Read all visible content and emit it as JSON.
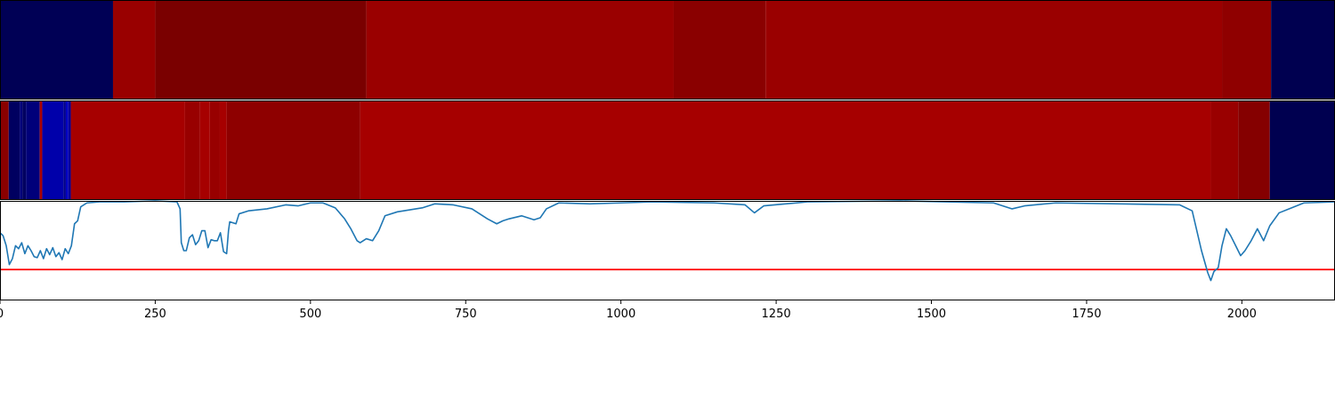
{
  "chart_data": [
    {
      "type": "heatmap",
      "x_range": [
        0,
        2150
      ],
      "segments": [
        {
          "x0": 0,
          "x1": 182,
          "color": "#000055"
        },
        {
          "x0": 182,
          "x1": 250,
          "color": "#990000"
        },
        {
          "x0": 250,
          "x1": 590,
          "color": "#7a0000"
        },
        {
          "x0": 590,
          "x1": 1085,
          "color": "#9a0000"
        },
        {
          "x0": 1085,
          "x1": 1233,
          "color": "#8a0000"
        },
        {
          "x0": 1233,
          "x1": 1968,
          "color": "#9a0000"
        },
        {
          "x0": 1968,
          "x1": 2047,
          "color": "#8f0000"
        },
        {
          "x0": 2047,
          "x1": 2150,
          "color": "#000050"
        }
      ]
    },
    {
      "type": "heatmap",
      "x_range": [
        0,
        2150
      ],
      "segments": [
        {
          "x0": 0,
          "x1": 14,
          "color": "#8a0000"
        },
        {
          "x0": 14,
          "x1": 32,
          "color": "#000060"
        },
        {
          "x0": 32,
          "x1": 36,
          "color": "#00007a"
        },
        {
          "x0": 36,
          "x1": 42,
          "color": "#000060"
        },
        {
          "x0": 42,
          "x1": 64,
          "color": "#00007a"
        },
        {
          "x0": 64,
          "x1": 68,
          "color": "#aa0000"
        },
        {
          "x0": 68,
          "x1": 102,
          "color": "#0000aa"
        },
        {
          "x0": 102,
          "x1": 106,
          "color": "#00008a"
        },
        {
          "x0": 106,
          "x1": 110,
          "color": "#0000c0"
        },
        {
          "x0": 110,
          "x1": 114,
          "color": "#00009a"
        },
        {
          "x0": 114,
          "x1": 298,
          "color": "#a60000"
        },
        {
          "x0": 298,
          "x1": 322,
          "color": "#980000"
        },
        {
          "x0": 322,
          "x1": 338,
          "color": "#a60000"
        },
        {
          "x0": 338,
          "x1": 354,
          "color": "#980000"
        },
        {
          "x0": 354,
          "x1": 365,
          "color": "#a60000"
        },
        {
          "x0": 365,
          "x1": 580,
          "color": "#8e0000"
        },
        {
          "x0": 580,
          "x1": 1950,
          "color": "#a60000"
        },
        {
          "x0": 1950,
          "x1": 1994,
          "color": "#990000"
        },
        {
          "x0": 1994,
          "x1": 2045,
          "color": "#850000"
        },
        {
          "x0": 2045,
          "x1": 2150,
          "color": "#000050"
        }
      ]
    },
    {
      "type": "line",
      "x_range": [
        0,
        2150
      ],
      "y_range": [
        0,
        1
      ],
      "xticks": [
        0,
        250,
        500,
        750,
        1000,
        1250,
        1500,
        1750,
        2000
      ],
      "xtick_labels": [
        "0",
        "250",
        "500",
        "750",
        "1000",
        "1250",
        "1500",
        "1750",
        "2000"
      ],
      "threshold": {
        "y": 0.31,
        "color": "#ff0000"
      },
      "series": [
        {
          "color": "#1f77b4",
          "points": [
            [
              0,
              0.68
            ],
            [
              5,
              0.65
            ],
            [
              10,
              0.55
            ],
            [
              15,
              0.36
            ],
            [
              20,
              0.42
            ],
            [
              25,
              0.55
            ],
            [
              30,
              0.52
            ],
            [
              35,
              0.58
            ],
            [
              40,
              0.47
            ],
            [
              45,
              0.55
            ],
            [
              50,
              0.5
            ],
            [
              55,
              0.44
            ],
            [
              60,
              0.43
            ],
            [
              65,
              0.5
            ],
            [
              70,
              0.42
            ],
            [
              75,
              0.52
            ],
            [
              80,
              0.46
            ],
            [
              85,
              0.53
            ],
            [
              90,
              0.44
            ],
            [
              95,
              0.48
            ],
            [
              100,
              0.41
            ],
            [
              105,
              0.52
            ],
            [
              110,
              0.47
            ],
            [
              115,
              0.55
            ],
            [
              120,
              0.77
            ],
            [
              125,
              0.8
            ],
            [
              130,
              0.94
            ],
            [
              140,
              0.98
            ],
            [
              160,
              0.99
            ],
            [
              200,
              0.99
            ],
            [
              250,
              1.0
            ],
            [
              285,
              0.99
            ],
            [
              290,
              0.92
            ],
            [
              292,
              0.58
            ],
            [
              296,
              0.5
            ],
            [
              300,
              0.5
            ],
            [
              305,
              0.63
            ],
            [
              310,
              0.66
            ],
            [
              315,
              0.56
            ],
            [
              320,
              0.6
            ],
            [
              325,
              0.7
            ],
            [
              330,
              0.7
            ],
            [
              335,
              0.53
            ],
            [
              340,
              0.61
            ],
            [
              345,
              0.6
            ],
            [
              350,
              0.6
            ],
            [
              355,
              0.68
            ],
            [
              360,
              0.49
            ],
            [
              365,
              0.47
            ],
            [
              368,
              0.7
            ],
            [
              370,
              0.79
            ],
            [
              380,
              0.77
            ],
            [
              385,
              0.87
            ],
            [
              400,
              0.9
            ],
            [
              430,
              0.92
            ],
            [
              460,
              0.96
            ],
            [
              480,
              0.95
            ],
            [
              500,
              0.98
            ],
            [
              520,
              0.98
            ],
            [
              540,
              0.93
            ],
            [
              555,
              0.82
            ],
            [
              565,
              0.72
            ],
            [
              575,
              0.6
            ],
            [
              580,
              0.58
            ],
            [
              590,
              0.62
            ],
            [
              600,
              0.6
            ],
            [
              610,
              0.7
            ],
            [
              620,
              0.85
            ],
            [
              640,
              0.89
            ],
            [
              680,
              0.93
            ],
            [
              700,
              0.97
            ],
            [
              730,
              0.96
            ],
            [
              760,
              0.92
            ],
            [
              785,
              0.82
            ],
            [
              800,
              0.77
            ],
            [
              810,
              0.8
            ],
            [
              820,
              0.82
            ],
            [
              840,
              0.85
            ],
            [
              860,
              0.81
            ],
            [
              870,
              0.83
            ],
            [
              880,
              0.92
            ],
            [
              900,
              0.98
            ],
            [
              950,
              0.97
            ],
            [
              1000,
              0.98
            ],
            [
              1050,
              0.99
            ],
            [
              1150,
              0.98
            ],
            [
              1200,
              0.96
            ],
            [
              1215,
              0.88
            ],
            [
              1230,
              0.95
            ],
            [
              1300,
              0.99
            ],
            [
              1450,
              1.0
            ],
            [
              1600,
              0.98
            ],
            [
              1630,
              0.92
            ],
            [
              1650,
              0.95
            ],
            [
              1700,
              0.98
            ],
            [
              1900,
              0.96
            ],
            [
              1920,
              0.9
            ],
            [
              1935,
              0.5
            ],
            [
              1945,
              0.28
            ],
            [
              1950,
              0.2
            ],
            [
              1955,
              0.29
            ],
            [
              1962,
              0.33
            ],
            [
              1968,
              0.55
            ],
            [
              1975,
              0.72
            ],
            [
              1982,
              0.65
            ],
            [
              1990,
              0.55
            ],
            [
              1998,
              0.45
            ],
            [
              2005,
              0.5
            ],
            [
              2015,
              0.6
            ],
            [
              2025,
              0.72
            ],
            [
              2035,
              0.6
            ],
            [
              2045,
              0.75
            ],
            [
              2060,
              0.88
            ],
            [
              2080,
              0.93
            ],
            [
              2100,
              0.98
            ],
            [
              2150,
              0.99
            ]
          ]
        }
      ]
    }
  ]
}
